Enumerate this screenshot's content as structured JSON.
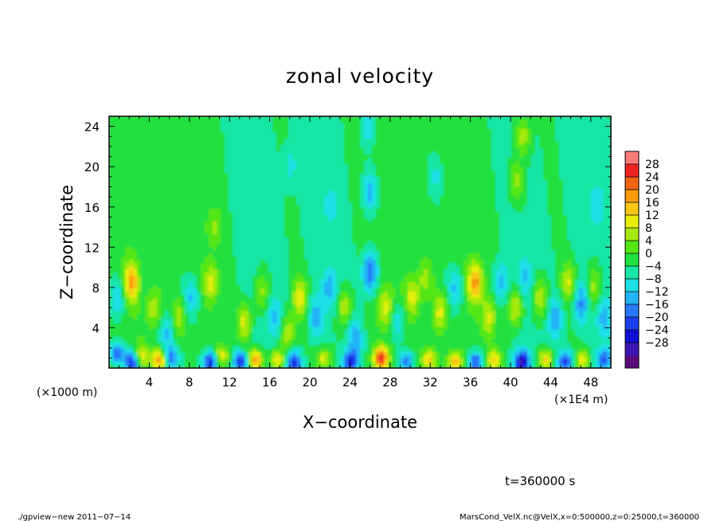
{
  "chart_data": {
    "type": "heatmap",
    "title": "zonal velocity",
    "xlabel": "X−coordinate",
    "ylabel": "Z−coordinate",
    "xlim": [
      0,
      50
    ],
    "ylim": [
      0,
      25
    ],
    "x_ticks": [
      "4",
      "8",
      "12",
      "16",
      "20",
      "24",
      "28",
      "32",
      "36",
      "40",
      "44",
      "48"
    ],
    "y_ticks": [
      "4",
      "8",
      "12",
      "16",
      "20",
      "24"
    ],
    "z_unit_note": "(×1000 m)",
    "x_unit_note": "(×1E4 m)",
    "colorbar": {
      "labels": [
        "28",
        "24",
        "20",
        "16",
        "12",
        "8",
        "4",
        "0",
        "−4",
        "−8",
        "−12",
        "−16",
        "−20",
        "−24",
        "−28"
      ],
      "range": [
        -30,
        30
      ],
      "step": 4,
      "colors": [
        "#5a0a7a",
        "#3a16b4",
        "#1010d8",
        "#1e3ff0",
        "#2878f8",
        "#22b4f6",
        "#1ee0e6",
        "#18e6a4",
        "#20e040",
        "#54e614",
        "#a4ea10",
        "#e6ee0a",
        "#fac814",
        "#fa9a0c",
        "#f06414",
        "#f02424",
        "#f87a7a"
      ]
    },
    "fields": [
      {
        "x": 0.8,
        "z": 1.5,
        "value": -18
      },
      {
        "x": 2.3,
        "z": 0.6,
        "value": -24
      },
      {
        "x": 3.2,
        "z": 1.2,
        "value": 12
      },
      {
        "x": 5.0,
        "z": 0.8,
        "value": 22
      },
      {
        "x": 6.2,
        "z": 1.0,
        "value": -16
      },
      {
        "x": 10.1,
        "z": 0.6,
        "value": -24
      },
      {
        "x": 11.2,
        "z": 1.2,
        "value": 14
      },
      {
        "x": 13.1,
        "z": 0.6,
        "value": -20
      },
      {
        "x": 14.6,
        "z": 0.8,
        "value": 24
      },
      {
        "x": 16.8,
        "z": 0.8,
        "value": 16
      },
      {
        "x": 18.4,
        "z": 0.6,
        "value": -20
      },
      {
        "x": 21.4,
        "z": 1.0,
        "value": 14
      },
      {
        "x": 24.0,
        "z": 0.6,
        "value": -18
      },
      {
        "x": 27.1,
        "z": 1.0,
        "value": 28
      },
      {
        "x": 29.6,
        "z": 0.6,
        "value": -18
      },
      {
        "x": 31.8,
        "z": 0.8,
        "value": 16
      },
      {
        "x": 34.5,
        "z": 0.6,
        "value": 18
      },
      {
        "x": 36.5,
        "z": 0.6,
        "value": -20
      },
      {
        "x": 38.3,
        "z": 0.8,
        "value": 16
      },
      {
        "x": 41.1,
        "z": 0.6,
        "value": -24
      },
      {
        "x": 43.5,
        "z": 0.8,
        "value": 18
      },
      {
        "x": 45.5,
        "z": 0.6,
        "value": -18
      },
      {
        "x": 47.2,
        "z": 0.8,
        "value": 14
      },
      {
        "x": 49.3,
        "z": 0.8,
        "value": -16
      },
      {
        "x": 2.2,
        "z": 8.5,
        "value": 18
      },
      {
        "x": 0.8,
        "z": 7.0,
        "value": -10
      },
      {
        "x": 4.5,
        "z": 6.0,
        "value": 10
      },
      {
        "x": 5.8,
        "z": 3.5,
        "value": -10
      },
      {
        "x": 7.0,
        "z": 5.0,
        "value": 10
      },
      {
        "x": 8.2,
        "z": 7.0,
        "value": -10
      },
      {
        "x": 10.2,
        "z": 8.5,
        "value": 12
      },
      {
        "x": 10.5,
        "z": 14.0,
        "value": 8
      },
      {
        "x": 13.5,
        "z": 4.5,
        "value": 14
      },
      {
        "x": 15.2,
        "z": 7.5,
        "value": 10
      },
      {
        "x": 16.5,
        "z": 5.0,
        "value": -8
      },
      {
        "x": 17.8,
        "z": 3.5,
        "value": 12
      },
      {
        "x": 19.0,
        "z": 7.0,
        "value": 14
      },
      {
        "x": 20.6,
        "z": 5.0,
        "value": -10
      },
      {
        "x": 22.0,
        "z": 8.0,
        "value": -10
      },
      {
        "x": 23.5,
        "z": 6.0,
        "value": 12
      },
      {
        "x": 24.5,
        "z": 3.0,
        "value": -10
      },
      {
        "x": 26.0,
        "z": 9.5,
        "value": -18
      },
      {
        "x": 26.0,
        "z": 17.5,
        "value": -12
      },
      {
        "x": 25.8,
        "z": 24.0,
        "value": -8
      },
      {
        "x": 27.5,
        "z": 6.0,
        "value": 12
      },
      {
        "x": 28.8,
        "z": 4.5,
        "value": -10
      },
      {
        "x": 30.2,
        "z": 7.0,
        "value": 12
      },
      {
        "x": 31.5,
        "z": 9.0,
        "value": 8
      },
      {
        "x": 33.0,
        "z": 5.5,
        "value": 12
      },
      {
        "x": 34.5,
        "z": 8.0,
        "value": -10
      },
      {
        "x": 36.5,
        "z": 8.5,
        "value": 20
      },
      {
        "x": 37.8,
        "z": 5.0,
        "value": 12
      },
      {
        "x": 39.0,
        "z": 8.5,
        "value": -10
      },
      {
        "x": 40.5,
        "z": 6.0,
        "value": 14
      },
      {
        "x": 41.5,
        "z": 9.0,
        "value": -8
      },
      {
        "x": 40.5,
        "z": 18.5,
        "value": 10
      },
      {
        "x": 41.3,
        "z": 23.0,
        "value": 10
      },
      {
        "x": 43.0,
        "z": 7.0,
        "value": 12
      },
      {
        "x": 44.5,
        "z": 5.0,
        "value": -10
      },
      {
        "x": 45.8,
        "z": 8.5,
        "value": 12
      },
      {
        "x": 47.0,
        "z": 6.5,
        "value": -12
      },
      {
        "x": 48.3,
        "z": 8.0,
        "value": 10
      },
      {
        "x": 49.3,
        "z": 5.0,
        "value": -10
      },
      {
        "x": 48.5,
        "z": 16.0,
        "value": -6
      },
      {
        "x": 32.5,
        "z": 19.0,
        "value": -6
      },
      {
        "x": 18.0,
        "z": 20.0,
        "value": -6
      },
      {
        "x": 3.0,
        "z": 19.0,
        "value": 3
      },
      {
        "x": 22.0,
        "z": 16.0,
        "value": -5
      }
    ]
  },
  "annotations": {
    "time": "t=360000 s",
    "program": "./gpview−new   2011−07−14",
    "source": "MarsCond_VelX.nc@VelX,x=0:500000,z=0:25000,t=360000"
  }
}
